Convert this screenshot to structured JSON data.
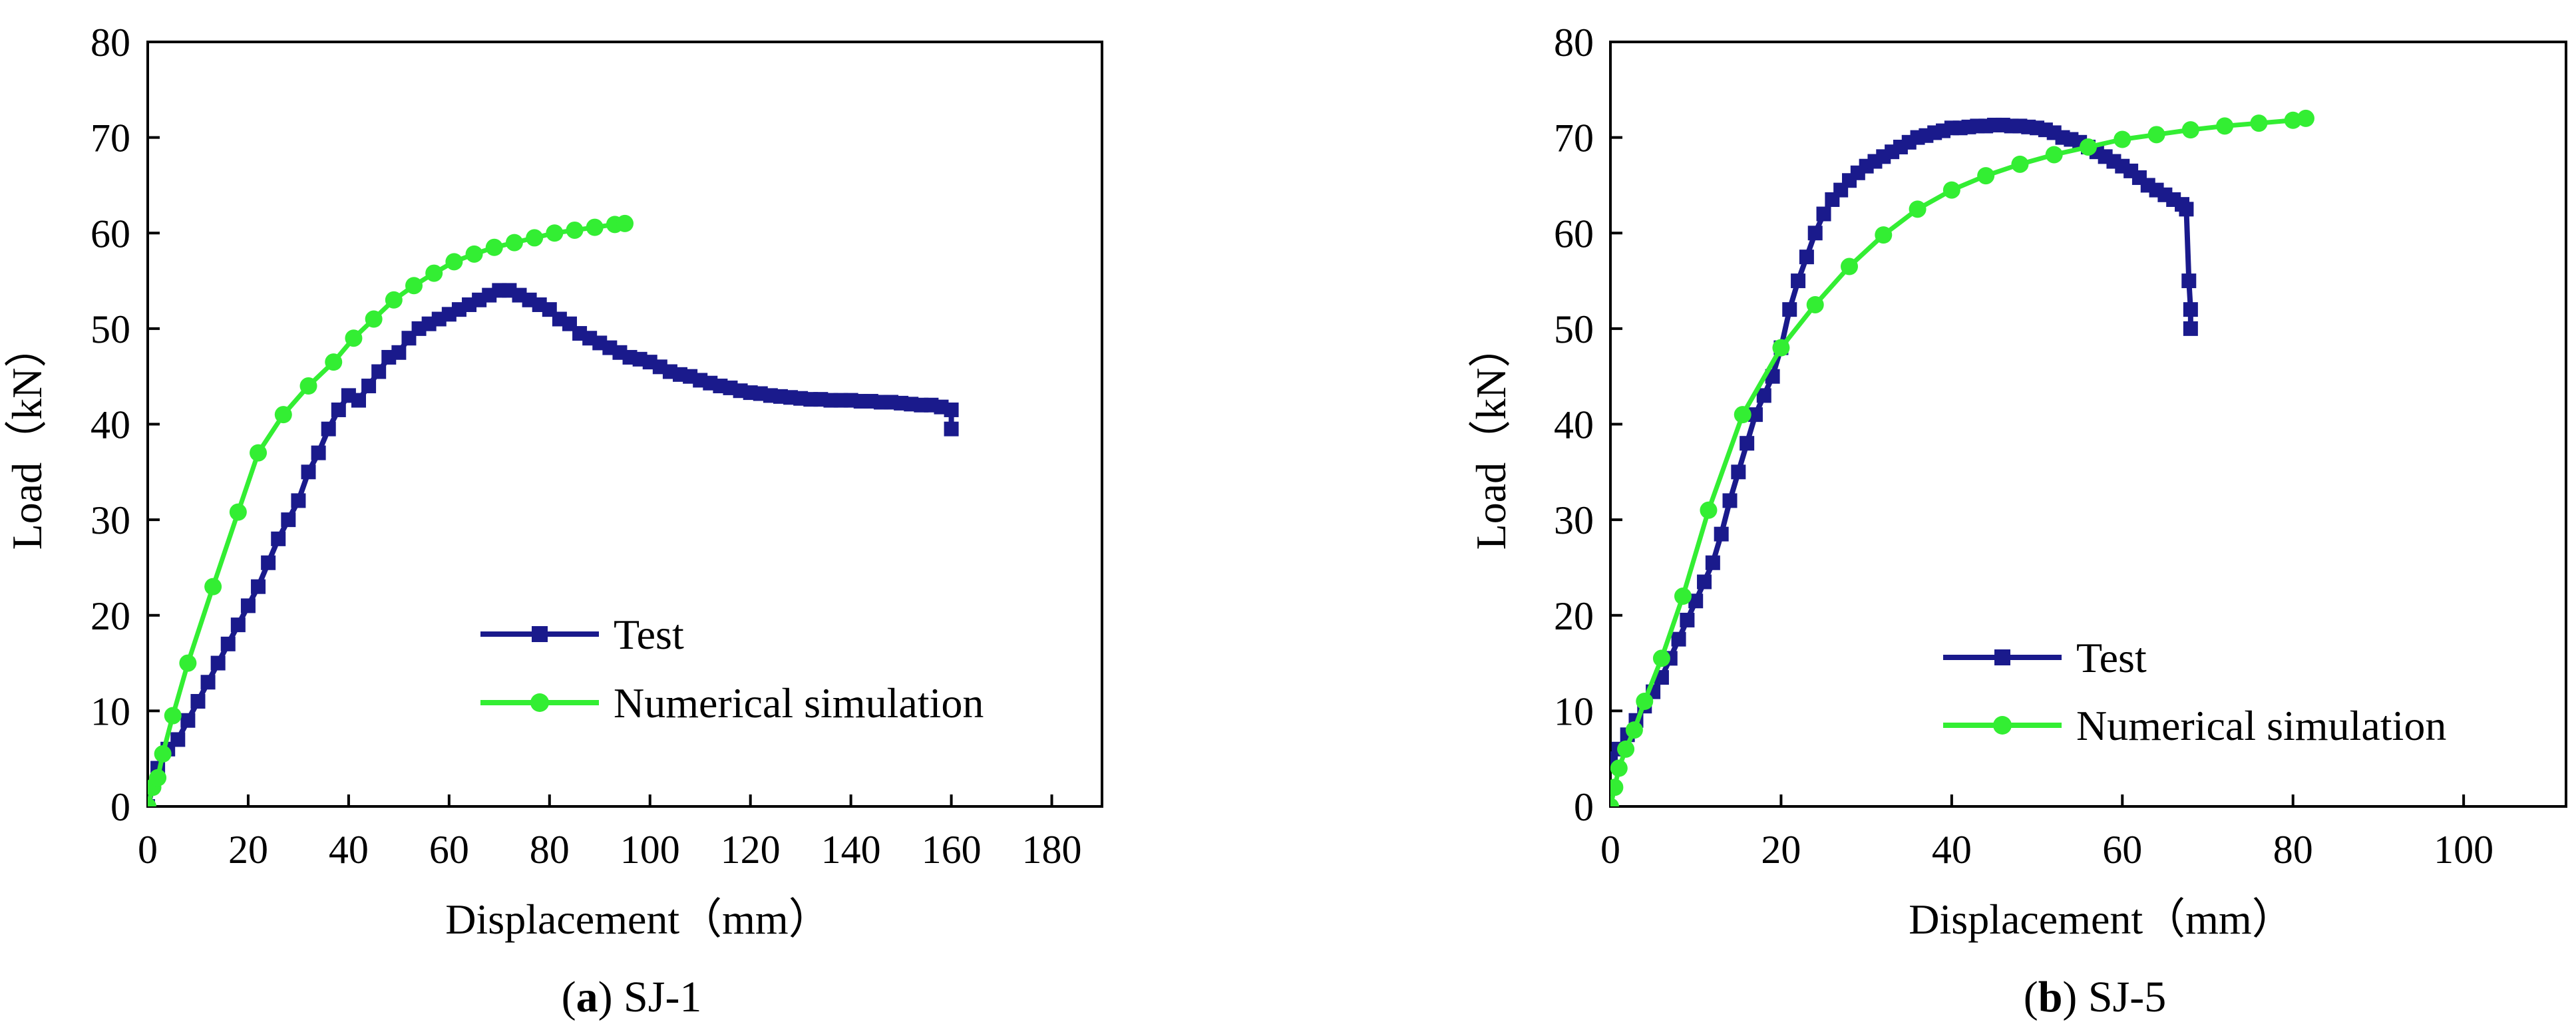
{
  "chart_data": [
    {
      "id": "a",
      "type": "line",
      "panel_label": "a",
      "caption_open": "(",
      "caption_close": ")",
      "caption_text": " SJ-1",
      "xlabel": "Displacement（mm）",
      "ylabel": "Load（kN）",
      "xlim": [
        0,
        190
      ],
      "ylim": [
        0,
        80
      ],
      "xticks": [
        0,
        20,
        40,
        60,
        80,
        100,
        120,
        140,
        160,
        180
      ],
      "yticks": [
        0,
        10,
        20,
        30,
        40,
        50,
        60,
        70,
        80
      ],
      "legend": {
        "position": "lower-right"
      },
      "series": [
        {
          "name": "Test",
          "color": "#1a1a8c",
          "marker": "square",
          "x": [
            0,
            2,
            4,
            6,
            8,
            10,
            12,
            14,
            16,
            18,
            20,
            22,
            24,
            26,
            28,
            30,
            32,
            34,
            36,
            38,
            40,
            42,
            44,
            46,
            48,
            50,
            52,
            54,
            56,
            58,
            60,
            62,
            64,
            66,
            68,
            70,
            72,
            74,
            76,
            78,
            80,
            82,
            84,
            86,
            88,
            90,
            92,
            94,
            96,
            98,
            100,
            102,
            104,
            106,
            108,
            110,
            112,
            114,
            116,
            118,
            120,
            122,
            124,
            126,
            128,
            130,
            132,
            134,
            136,
            138,
            140,
            142,
            144,
            146,
            148,
            150,
            152,
            154,
            156,
            158,
            160,
            160
          ],
          "y": [
            0,
            4,
            6,
            7,
            9,
            11,
            13,
            15,
            17,
            19,
            21,
            23,
            25.5,
            28,
            30,
            32,
            35,
            37,
            39.5,
            41.5,
            43,
            42.5,
            44,
            45.5,
            47,
            47.5,
            49,
            50,
            50.5,
            51,
            51.5,
            52,
            52.5,
            53,
            53.5,
            54,
            54,
            53.5,
            53,
            52.5,
            52,
            51,
            50.5,
            49.5,
            49,
            48.5,
            48,
            47.5,
            47,
            46.8,
            46.5,
            46,
            45.5,
            45.2,
            45,
            44.6,
            44.3,
            44,
            43.8,
            43.5,
            43.3,
            43.2,
            43,
            42.9,
            42.8,
            42.7,
            42.6,
            42.6,
            42.5,
            42.5,
            42.5,
            42.4,
            42.4,
            42.3,
            42.3,
            42.2,
            42.1,
            42,
            42,
            41.8,
            41.5,
            39.5
          ]
        },
        {
          "name": "Numerical simulation",
          "color": "#33ee33",
          "marker": "circle",
          "x": [
            0,
            1,
            2,
            3,
            5,
            8,
            13,
            18,
            22,
            27,
            32,
            37,
            41,
            45,
            49,
            53,
            57,
            61,
            65,
            69,
            73,
            77,
            81,
            85,
            89,
            93,
            95
          ],
          "y": [
            0,
            2,
            3,
            5.5,
            9.5,
            15,
            23,
            30.8,
            37,
            41,
            44,
            46.5,
            49,
            51,
            53,
            54.5,
            55.8,
            57,
            57.8,
            58.5,
            59,
            59.5,
            60,
            60.3,
            60.6,
            60.9,
            61
          ]
        }
      ]
    },
    {
      "id": "b",
      "type": "line",
      "panel_label": "b",
      "caption_open": "(",
      "caption_close": ")",
      "caption_text": " SJ-5",
      "xlabel": "Displacement（mm）",
      "ylabel": "Load（kN）",
      "xlim": [
        0,
        112
      ],
      "ylim": [
        0,
        80
      ],
      "xticks": [
        0,
        20,
        40,
        60,
        80,
        100
      ],
      "yticks": [
        0,
        10,
        20,
        30,
        40,
        50,
        60,
        70,
        80
      ],
      "legend": {
        "position": "lower-right"
      },
      "series": [
        {
          "name": "Test",
          "color": "#1a1a8c",
          "marker": "square",
          "x": [
            0,
            1,
            2,
            3,
            4,
            5,
            6,
            7,
            8,
            9,
            10,
            11,
            12,
            13,
            14,
            15,
            16,
            17,
            18,
            19,
            20,
            21,
            22,
            23,
            24,
            25,
            26,
            27,
            28,
            29,
            30,
            31,
            32,
            33,
            34,
            35,
            36,
            37,
            38,
            39,
            40,
            41,
            42,
            43,
            44,
            45,
            46,
            47,
            48,
            49,
            50,
            51,
            52,
            53,
            54,
            55,
            56,
            57,
            58,
            59,
            60,
            61,
            62,
            63,
            64,
            65,
            66,
            67,
            67.5,
            67.8,
            68,
            68
          ],
          "y": [
            5,
            6,
            7.5,
            9,
            10.5,
            12,
            13.5,
            15.5,
            17.5,
            19.5,
            21.5,
            23.5,
            25.5,
            28.5,
            32,
            35,
            38,
            41,
            43,
            45,
            48,
            52,
            55,
            57.5,
            60,
            62,
            63.5,
            64.5,
            65.5,
            66.3,
            67,
            67.5,
            68,
            68.5,
            69,
            69.5,
            70,
            70.2,
            70.5,
            70.7,
            71,
            71,
            71.1,
            71.2,
            71.2,
            71.3,
            71.3,
            71.2,
            71.2,
            71.1,
            71,
            70.8,
            70.5,
            70,
            69.8,
            69.5,
            69,
            68.5,
            68,
            67.5,
            67,
            66.5,
            65.8,
            65,
            64.5,
            64,
            63.5,
            63,
            62.5,
            55,
            52,
            50
          ]
        },
        {
          "name": "Numerical simulation",
          "color": "#33ee33",
          "marker": "circle",
          "x": [
            0,
            0.5,
            1,
            1.8,
            2.8,
            4,
            6,
            8.5,
            11.5,
            15.5,
            20,
            24,
            28,
            32,
            36,
            40,
            44,
            48,
            52,
            56,
            60,
            64,
            68,
            72,
            76,
            80,
            81.5
          ],
          "y": [
            0,
            2,
            4,
            6,
            8,
            11,
            15.5,
            22,
            31,
            41,
            48,
            52.5,
            56.5,
            59.8,
            62.5,
            64.5,
            66,
            67.2,
            68.2,
            69,
            69.8,
            70.3,
            70.8,
            71.2,
            71.5,
            71.8,
            72
          ]
        }
      ]
    }
  ]
}
